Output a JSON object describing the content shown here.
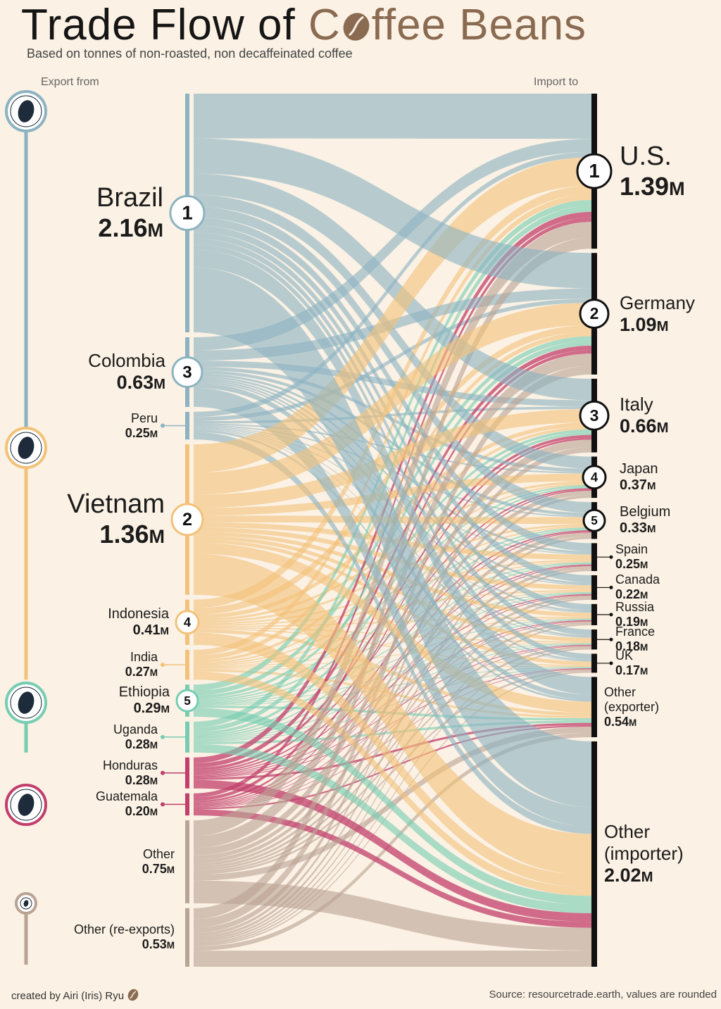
{
  "title_before": "Trade Flow of ",
  "title_c": "C",
  "title_after": "ffee Beans",
  "subtitle": "Based on tonnes of non-roasted,  non decaffeinated coffee",
  "export_header": "Export from",
  "import_header": "Import to",
  "credit": "created by Airi (Iris) Ryu",
  "source": "Source: resourcetrade.earth, values are rounded",
  "colors": {
    "south_america": "#8db3c1",
    "asia": "#f2c27a",
    "africa": "#76cdb1",
    "central_america": "#c23f6c",
    "europe_other": "#b9a394",
    "background": "#fbf1e4"
  },
  "region_icons": [
    "south-america-globe-icon",
    "asia-globe-icon",
    "africa-globe-icon",
    "central-america-globe-icon",
    "europe-globe-icon"
  ],
  "chart_data": {
    "type": "sankey",
    "unit": "M",
    "exporters": [
      {
        "name": "Brazil",
        "value": 2.16,
        "rank": "1",
        "region": "south_america"
      },
      {
        "name": "Colombia",
        "value": 0.63,
        "rank": "3",
        "region": "south_america"
      },
      {
        "name": "Peru",
        "value": 0.25,
        "rank": "",
        "region": "south_america"
      },
      {
        "name": "Vietnam",
        "value": 1.36,
        "rank": "2",
        "region": "asia"
      },
      {
        "name": "Indonesia",
        "value": 0.41,
        "rank": "4",
        "region": "asia"
      },
      {
        "name": "India",
        "value": 0.27,
        "rank": "",
        "region": "asia"
      },
      {
        "name": "Ethiopia",
        "value": 0.29,
        "rank": "5",
        "region": "africa"
      },
      {
        "name": "Uganda",
        "value": 0.28,
        "rank": "",
        "region": "africa"
      },
      {
        "name": "Honduras",
        "value": 0.28,
        "rank": "",
        "region": "central_america"
      },
      {
        "name": "Guatemala",
        "value": 0.2,
        "rank": "",
        "region": "central_america"
      },
      {
        "name": "Other",
        "value": 0.75,
        "rank": "",
        "region": "other"
      },
      {
        "name": "Other (re-exports)",
        "value": 0.53,
        "rank": "",
        "region": "europe_other"
      }
    ],
    "importers": [
      {
        "name": "U.S.",
        "value": 1.39,
        "rank": "1"
      },
      {
        "name": "Germany",
        "value": 1.09,
        "rank": "2"
      },
      {
        "name": "Italy",
        "value": 0.66,
        "rank": "3"
      },
      {
        "name": "Japan",
        "value": 0.37,
        "rank": "4"
      },
      {
        "name": "Belgium",
        "value": 0.33,
        "rank": "5"
      },
      {
        "name": "Spain",
        "value": 0.25,
        "rank": ""
      },
      {
        "name": "Canada",
        "value": 0.22,
        "rank": ""
      },
      {
        "name": "Russia",
        "value": 0.19,
        "rank": ""
      },
      {
        "name": "France",
        "value": 0.18,
        "rank": ""
      },
      {
        "name": "UK",
        "value": 0.17,
        "rank": ""
      },
      {
        "name": "Other\n(exporter)",
        "value": 0.54,
        "rank": ""
      },
      {
        "name": "Other\n(importer)",
        "value": 2.02,
        "rank": ""
      }
    ]
  }
}
